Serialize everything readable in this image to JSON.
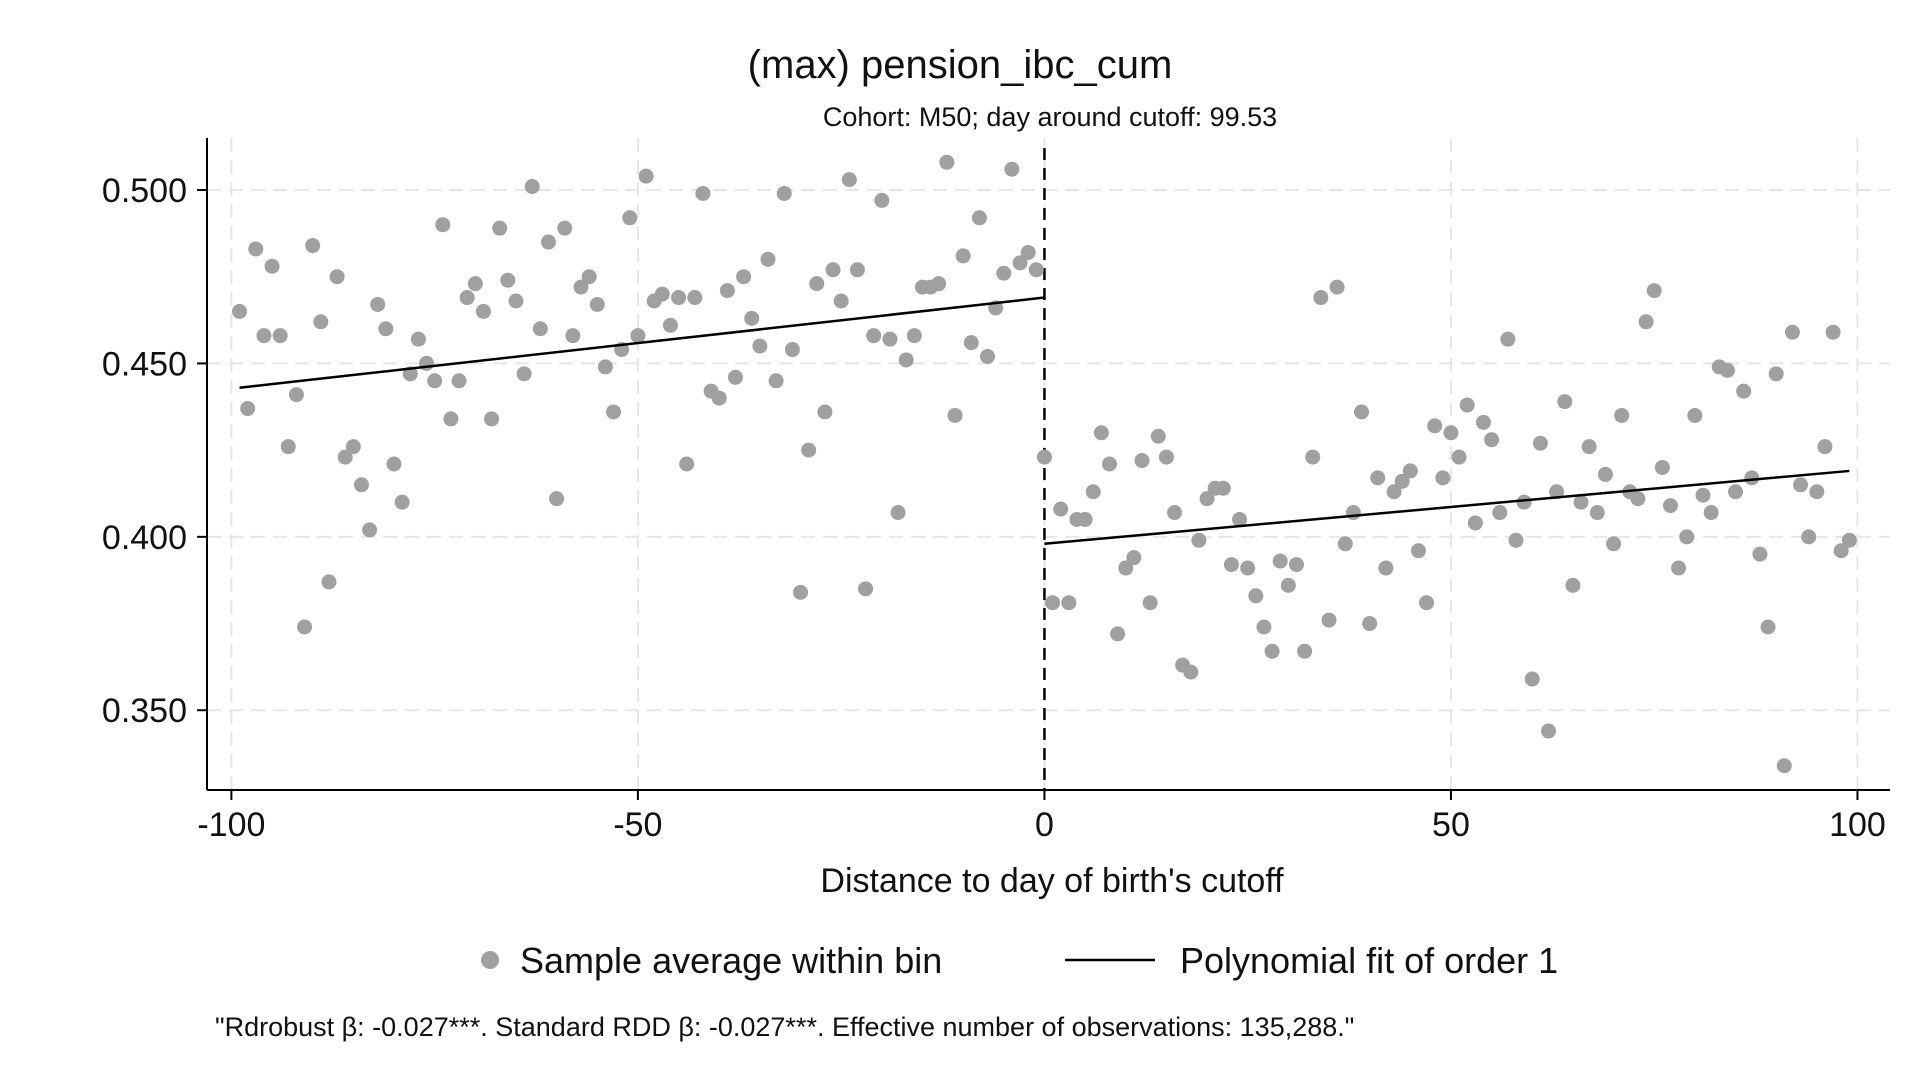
{
  "chart_data": {
    "type": "scatter",
    "title": "(max) pension_ibc_cum",
    "subtitle": "Cohort: M50; day around cutoff: 99.53",
    "xlabel": "Distance to day of birth's cutoff",
    "ylabel": "",
    "xlim": [
      -103,
      104
    ],
    "ylim": [
      0.327,
      0.515
    ],
    "x_ticks": [
      -100,
      -50,
      0,
      50,
      100
    ],
    "y_ticks": [
      0.35,
      0.4,
      0.45,
      0.5
    ],
    "y_tick_labels": [
      "0.350",
      "0.400",
      "0.450",
      "0.500"
    ],
    "grid": true,
    "cutoff_x": 0,
    "legend_position": "bottom",
    "note": "\"Rdrobust β: -0.027***. Standard RDD β: -0.027***. Effective number of observations: 135,288.\"",
    "colors": {
      "points": "#a0a0a0",
      "fit": "#000000",
      "grid": "#e6e6e6",
      "axis": "#000000"
    },
    "series": [
      {
        "name": "Sample average within bin",
        "kind": "points",
        "points": [
          [
            -99,
            0.465
          ],
          [
            -98,
            0.437
          ],
          [
            -97,
            0.483
          ],
          [
            -96,
            0.458
          ],
          [
            -95,
            0.478
          ],
          [
            -94,
            0.458
          ],
          [
            -93,
            0.426
          ],
          [
            -92,
            0.441
          ],
          [
            -91,
            0.374
          ],
          [
            -90,
            0.484
          ],
          [
            -89,
            0.462
          ],
          [
            -88,
            0.387
          ],
          [
            -87,
            0.475
          ],
          [
            -86,
            0.423
          ],
          [
            -85,
            0.426
          ],
          [
            -84,
            0.415
          ],
          [
            -83,
            0.402
          ],
          [
            -82,
            0.467
          ],
          [
            -81,
            0.46
          ],
          [
            -80,
            0.421
          ],
          [
            -79,
            0.41
          ],
          [
            -78,
            0.447
          ],
          [
            -77,
            0.457
          ],
          [
            -76,
            0.45
          ],
          [
            -75,
            0.445
          ],
          [
            -74,
            0.49
          ],
          [
            -73,
            0.434
          ],
          [
            -72,
            0.445
          ],
          [
            -71,
            0.469
          ],
          [
            -70,
            0.473
          ],
          [
            -69,
            0.465
          ],
          [
            -68,
            0.434
          ],
          [
            -67,
            0.489
          ],
          [
            -66,
            0.474
          ],
          [
            -65,
            0.468
          ],
          [
            -64,
            0.447
          ],
          [
            -63,
            0.501
          ],
          [
            -62,
            0.46
          ],
          [
            -61,
            0.485
          ],
          [
            -60,
            0.411
          ],
          [
            -59,
            0.489
          ],
          [
            -58,
            0.458
          ],
          [
            -57,
            0.472
          ],
          [
            -56,
            0.475
          ],
          [
            -55,
            0.467
          ],
          [
            -54,
            0.449
          ],
          [
            -53,
            0.436
          ],
          [
            -52,
            0.454
          ],
          [
            -51,
            0.492
          ],
          [
            -50,
            0.458
          ],
          [
            -49,
            0.504
          ],
          [
            -48,
            0.468
          ],
          [
            -47,
            0.47
          ],
          [
            -46,
            0.461
          ],
          [
            -45,
            0.469
          ],
          [
            -44,
            0.421
          ],
          [
            -43,
            0.469
          ],
          [
            -42,
            0.499
          ],
          [
            -41,
            0.442
          ],
          [
            -40,
            0.44
          ],
          [
            -39,
            0.471
          ],
          [
            -38,
            0.446
          ],
          [
            -37,
            0.475
          ],
          [
            -36,
            0.463
          ],
          [
            -35,
            0.455
          ],
          [
            -34,
            0.48
          ],
          [
            -33,
            0.445
          ],
          [
            -32,
            0.499
          ],
          [
            -31,
            0.454
          ],
          [
            -30,
            0.384
          ],
          [
            -29,
            0.425
          ],
          [
            -28,
            0.473
          ],
          [
            -27,
            0.436
          ],
          [
            -26,
            0.477
          ],
          [
            -25,
            0.468
          ],
          [
            -24,
            0.503
          ],
          [
            -23,
            0.477
          ],
          [
            -22,
            0.385
          ],
          [
            -21,
            0.458
          ],
          [
            -20,
            0.497
          ],
          [
            -19,
            0.457
          ],
          [
            -18,
            0.407
          ],
          [
            -17,
            0.451
          ],
          [
            -16,
            0.458
          ],
          [
            -15,
            0.472
          ],
          [
            -14,
            0.472
          ],
          [
            -13,
            0.473
          ],
          [
            -12,
            0.508
          ],
          [
            -11,
            0.435
          ],
          [
            -10,
            0.481
          ],
          [
            -9,
            0.456
          ],
          [
            -8,
            0.492
          ],
          [
            -7,
            0.452
          ],
          [
            -6,
            0.466
          ],
          [
            -5,
            0.476
          ],
          [
            -4,
            0.506
          ],
          [
            -3,
            0.479
          ],
          [
            -2,
            0.482
          ],
          [
            -1,
            0.477
          ],
          [
            0,
            0.423
          ],
          [
            1,
            0.381
          ],
          [
            2,
            0.408
          ],
          [
            3,
            0.381
          ],
          [
            4,
            0.405
          ],
          [
            5,
            0.405
          ],
          [
            6,
            0.413
          ],
          [
            7,
            0.43
          ],
          [
            8,
            0.421
          ],
          [
            9,
            0.372
          ],
          [
            10,
            0.391
          ],
          [
            11,
            0.394
          ],
          [
            12,
            0.422
          ],
          [
            13,
            0.381
          ],
          [
            14,
            0.429
          ],
          [
            15,
            0.423
          ],
          [
            16,
            0.407
          ],
          [
            17,
            0.363
          ],
          [
            18,
            0.361
          ],
          [
            19,
            0.399
          ],
          [
            20,
            0.411
          ],
          [
            21,
            0.414
          ],
          [
            22,
            0.414
          ],
          [
            23,
            0.392
          ],
          [
            24,
            0.405
          ],
          [
            25,
            0.391
          ],
          [
            26,
            0.383
          ],
          [
            27,
            0.374
          ],
          [
            28,
            0.367
          ],
          [
            29,
            0.393
          ],
          [
            30,
            0.386
          ],
          [
            31,
            0.392
          ],
          [
            32,
            0.367
          ],
          [
            33,
            0.423
          ],
          [
            34,
            0.469
          ],
          [
            35,
            0.376
          ],
          [
            36,
            0.472
          ],
          [
            37,
            0.398
          ],
          [
            38,
            0.407
          ],
          [
            39,
            0.436
          ],
          [
            40,
            0.375
          ],
          [
            41,
            0.417
          ],
          [
            42,
            0.391
          ],
          [
            43,
            0.413
          ],
          [
            44,
            0.416
          ],
          [
            45,
            0.419
          ],
          [
            46,
            0.396
          ],
          [
            47,
            0.381
          ],
          [
            48,
            0.432
          ],
          [
            49,
            0.417
          ],
          [
            50,
            0.43
          ],
          [
            51,
            0.423
          ],
          [
            52,
            0.438
          ],
          [
            53,
            0.404
          ],
          [
            54,
            0.433
          ],
          [
            55,
            0.428
          ],
          [
            56,
            0.407
          ],
          [
            57,
            0.457
          ],
          [
            58,
            0.399
          ],
          [
            59,
            0.41
          ],
          [
            60,
            0.359
          ],
          [
            61,
            0.427
          ],
          [
            62,
            0.344
          ],
          [
            63,
            0.413
          ],
          [
            64,
            0.439
          ],
          [
            65,
            0.386
          ],
          [
            66,
            0.41
          ],
          [
            67,
            0.426
          ],
          [
            68,
            0.407
          ],
          [
            69,
            0.418
          ],
          [
            70,
            0.398
          ],
          [
            71,
            0.435
          ],
          [
            72,
            0.413
          ],
          [
            73,
            0.411
          ],
          [
            74,
            0.462
          ],
          [
            75,
            0.471
          ],
          [
            76,
            0.42
          ],
          [
            77,
            0.409
          ],
          [
            78,
            0.391
          ],
          [
            79,
            0.4
          ],
          [
            80,
            0.435
          ],
          [
            81,
            0.412
          ],
          [
            82,
            0.407
          ],
          [
            83,
            0.449
          ],
          [
            84,
            0.448
          ],
          [
            85,
            0.413
          ],
          [
            86,
            0.442
          ],
          [
            87,
            0.417
          ],
          [
            88,
            0.395
          ],
          [
            89,
            0.374
          ],
          [
            90,
            0.447
          ],
          [
            91,
            0.334
          ],
          [
            92,
            0.459
          ],
          [
            93,
            0.415
          ],
          [
            94,
            0.4
          ],
          [
            95,
            0.413
          ],
          [
            96,
            0.426
          ],
          [
            97,
            0.459
          ],
          [
            98,
            0.396
          ],
          [
            99,
            0.399
          ]
        ]
      },
      {
        "name": "Polynomial fit of order 1",
        "kind": "lines",
        "segments": [
          [
            [
              -99,
              0.443
            ],
            [
              0,
              0.469
            ]
          ],
          [
            [
              0,
              0.398
            ],
            [
              99,
              0.419
            ]
          ]
        ]
      }
    ]
  }
}
